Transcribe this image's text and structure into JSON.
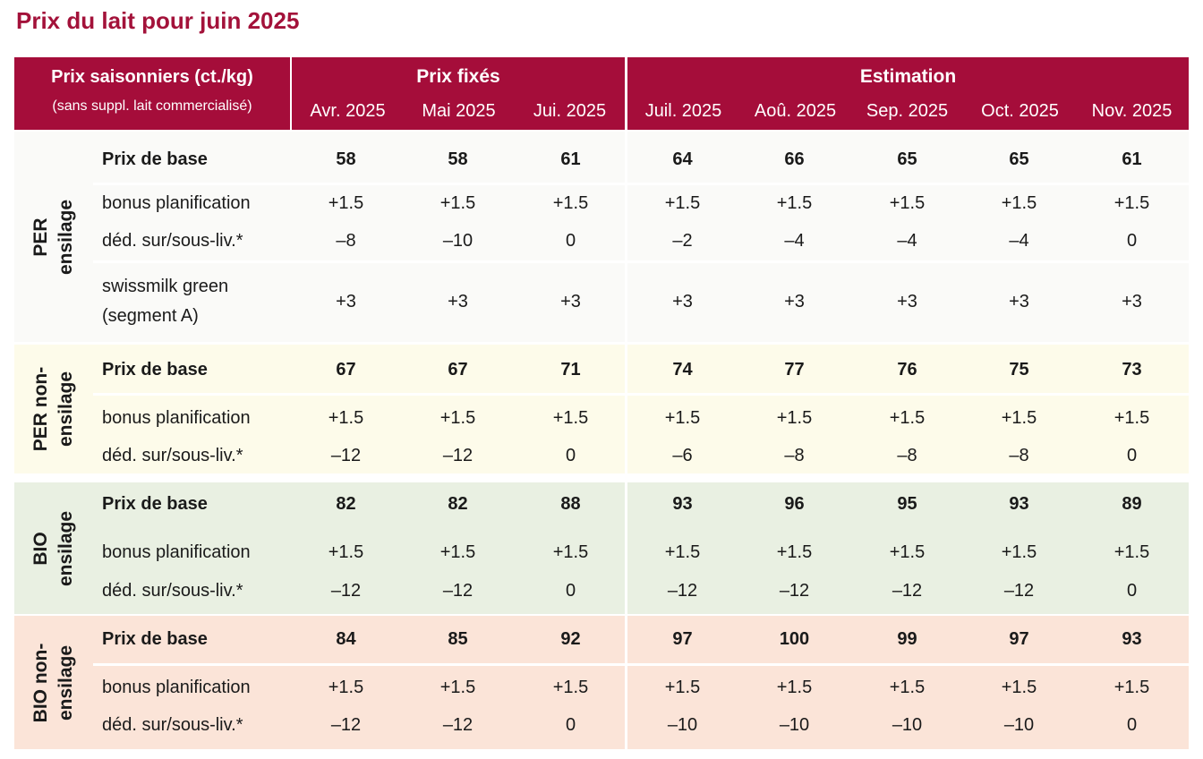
{
  "title": "Prix du lait pour juin 2025",
  "colors": {
    "header_bg": "#a50d3a",
    "title": "#a3123a",
    "per_bg": "#fafaf8",
    "per_non_bg": "#fdfbea",
    "bio_bg": "#e9f0e2",
    "bio_non_bg": "#fbe4d8"
  },
  "header": {
    "label_line1": "Prix saisonniers (ct./kg)",
    "label_line2": "(sans suppl. lait commercialisé)",
    "group_fixed": "Prix fixés",
    "group_estimation": "Estimation",
    "months": [
      "Avr. 2025",
      "Mai 2025",
      "Jui. 2025",
      "Juil. 2025",
      "Aoû. 2025",
      "Sep. 2025",
      "Oct. 2025",
      "Nov. 2025"
    ]
  },
  "sections": [
    {
      "label_lines": [
        "PER",
        "ensilage"
      ],
      "rows": [
        {
          "label": "Prix de base",
          "values": [
            "58",
            "58",
            "61",
            "64",
            "66",
            "65",
            "65",
            "61"
          ]
        },
        {
          "label": "bonus planification",
          "values": [
            "+1.5",
            "+1.5",
            "+1.5",
            "+1.5",
            "+1.5",
            "+1.5",
            "+1.5",
            "+1.5"
          ]
        },
        {
          "label": "déd. sur/sous-liv.*",
          "values": [
            "–8",
            "–10",
            "0",
            "–2",
            "–4",
            "–4",
            "–4",
            "0"
          ]
        },
        {
          "label": "swissmilk green",
          "label2": "(segment A)",
          "values": [
            "+3",
            "+3",
            "+3",
            "+3",
            "+3",
            "+3",
            "+3",
            "+3"
          ]
        }
      ]
    },
    {
      "label_lines": [
        "PER non-",
        "ensilage"
      ],
      "rows": [
        {
          "label": "Prix de base",
          "values": [
            "67",
            "67",
            "71",
            "74",
            "77",
            "76",
            "75",
            "73"
          ]
        },
        {
          "label": "bonus planification",
          "values": [
            "+1.5",
            "+1.5",
            "+1.5",
            "+1.5",
            "+1.5",
            "+1.5",
            "+1.5",
            "+1.5"
          ]
        },
        {
          "label": "déd. sur/sous-liv.*",
          "values": [
            "–12",
            "–12",
            "0",
            "–6",
            "–8",
            "–8",
            "–8",
            "0"
          ]
        }
      ]
    },
    {
      "label_lines": [
        "BIO",
        "ensilage"
      ],
      "rows": [
        {
          "label": "Prix de base",
          "values": [
            "82",
            "82",
            "88",
            "93",
            "96",
            "95",
            "93",
            "89"
          ]
        },
        {
          "label": "bonus planification",
          "values": [
            "+1.5",
            "+1.5",
            "+1.5",
            "+1.5",
            "+1.5",
            "+1.5",
            "+1.5",
            "+1.5"
          ]
        },
        {
          "label": "déd. sur/sous-liv.*",
          "values": [
            "–12",
            "–12",
            "0",
            "–12",
            "–12",
            "–12",
            "–12",
            "0"
          ]
        }
      ]
    },
    {
      "label_lines": [
        "BIO non-",
        "ensilage"
      ],
      "rows": [
        {
          "label": "Prix de base",
          "values": [
            "84",
            "85",
            "92",
            "97",
            "100",
            "99",
            "97",
            "93"
          ]
        },
        {
          "label": "bonus planification",
          "values": [
            "+1.5",
            "+1.5",
            "+1.5",
            "+1.5",
            "+1.5",
            "+1.5",
            "+1.5",
            "+1.5"
          ]
        },
        {
          "label": "déd. sur/sous-liv.*",
          "values": [
            "–12",
            "–12",
            "0",
            "–10",
            "–10",
            "–10",
            "–10",
            "0"
          ]
        }
      ]
    }
  ]
}
